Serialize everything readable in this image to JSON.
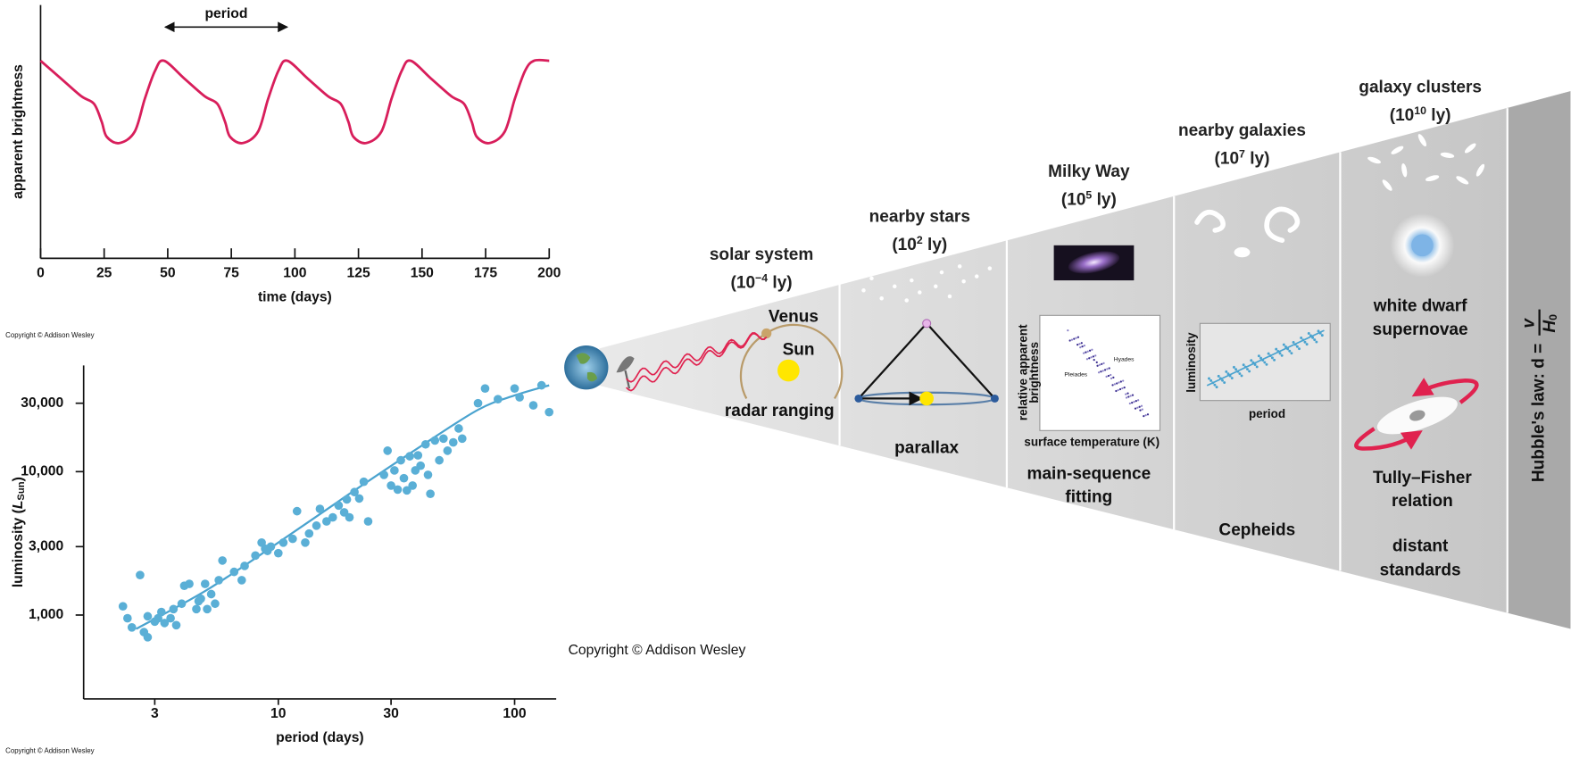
{
  "chart_data": [
    {
      "type": "line",
      "xlabel": "time (days)",
      "ylabel": "apparent brightness",
      "x": [
        0,
        8,
        16,
        21,
        24,
        26,
        31,
        37,
        41,
        45,
        48.5,
        56.5,
        64.5,
        69.5,
        72.5,
        74.5,
        79.5,
        85.5,
        89.5,
        93.5,
        97,
        105,
        113,
        118,
        121,
        123,
        128,
        134,
        138,
        142,
        145.5,
        153.5,
        161.5,
        166.5,
        169.5,
        171.5,
        176.5,
        182.5,
        186.5,
        190.5,
        194,
        200
      ],
      "values": [
        0.78,
        0.71,
        0.64,
        0.61,
        0.54,
        0.48,
        0.455,
        0.5,
        0.63,
        0.74,
        0.78,
        0.71,
        0.64,
        0.61,
        0.54,
        0.48,
        0.455,
        0.5,
        0.63,
        0.74,
        0.78,
        0.71,
        0.64,
        0.61,
        0.54,
        0.48,
        0.455,
        0.5,
        0.63,
        0.74,
        0.78,
        0.71,
        0.64,
        0.61,
        0.54,
        0.48,
        0.455,
        0.5,
        0.63,
        0.74,
        0.78,
        0.78
      ],
      "color": "#d81e5b",
      "xlim": [
        0,
        200
      ],
      "xticks": [
        0,
        25,
        50,
        75,
        100,
        125,
        150,
        175,
        200
      ],
      "ylim": [
        0,
        1
      ],
      "annotation": {
        "text": "period",
        "x_from": 49,
        "x_to": 97
      },
      "copyright": "Copyright © Addison Wesley"
    },
    {
      "type": "scatter",
      "xlabel": "period (days)",
      "ylabel": [
        "luminosity (",
        "L",
        "Sun",
        ")"
      ],
      "xscale": "log",
      "yscale": "log",
      "x": [
        2.2,
        2.3,
        2.4,
        2.6,
        2.7,
        2.8,
        2.8,
        3.0,
        3.1,
        3.2,
        3.3,
        3.5,
        3.6,
        3.7,
        3.9,
        4.0,
        4.2,
        4.5,
        4.6,
        4.7,
        4.9,
        5.0,
        5.2,
        5.4,
        5.6,
        5.8,
        6.5,
        7.0,
        7.2,
        8.0,
        8.5,
        8.8,
        9.0,
        9.3,
        10,
        10.5,
        11.5,
        12,
        13,
        13.5,
        14.5,
        15,
        16,
        17,
        18,
        19,
        19.5,
        20,
        21,
        22,
        23,
        24,
        28,
        29,
        30,
        31,
        32,
        33,
        34,
        35,
        36,
        37,
        38,
        39,
        40,
        42,
        43,
        44,
        46,
        48,
        50,
        52,
        55,
        58,
        60,
        70,
        75,
        85,
        100,
        105,
        120,
        130,
        140
      ],
      "y": [
        1150,
        950,
        820,
        1900,
        760,
        700,
        980,
        900,
        950,
        1050,
        880,
        950,
        1100,
        850,
        1200,
        1600,
        1650,
        1100,
        1250,
        1300,
        1650,
        1100,
        1400,
        1200,
        1750,
        2400,
        2000,
        1750,
        2200,
        2600,
        3200,
        2900,
        2800,
        3000,
        2700,
        3200,
        3400,
        5300,
        3200,
        3700,
        4200,
        5500,
        4500,
        4800,
        5800,
        5200,
        6400,
        4800,
        7200,
        6500,
        8500,
        4500,
        9500,
        14000,
        8000,
        10200,
        7500,
        12000,
        9000,
        7400,
        12800,
        8000,
        10200,
        13000,
        11000,
        15500,
        9500,
        7000,
        16500,
        12000,
        17000,
        14000,
        16000,
        20000,
        17000,
        30000,
        38000,
        32000,
        38000,
        33000,
        29000,
        40000,
        26000
      ],
      "color": "#5aafd6",
      "fit": {
        "x": [
          2.5,
          5,
          10,
          20,
          40,
          70,
          100,
          140
        ],
        "y": [
          800,
          1500,
          3200,
          7000,
          15000,
          27000,
          34000,
          40000
        ],
        "color": "#4aa3cf"
      },
      "xlim": [
        1.5,
        150
      ],
      "xticks": [
        3,
        10,
        30,
        100
      ],
      "ylim": [
        260,
        55000
      ],
      "yticks": [
        {
          "value": 1000,
          "label": "1,000"
        },
        {
          "value": 3000,
          "label": "3,000"
        },
        {
          "value": 10000,
          "label": "10,000"
        },
        {
          "value": 30000,
          "label": "30,000"
        }
      ],
      "copyright": "Copyright © Addison Wesley"
    }
  ],
  "diagram": {
    "stages": [
      {
        "name": "solar system",
        "scale": [
          "(10",
          "−4",
          " ly)"
        ],
        "labels": [
          "radar ranging"
        ]
      },
      {
        "name": "nearby stars",
        "scale": [
          "(10",
          "2",
          " ly)"
        ],
        "labels": [
          "parallax"
        ]
      },
      {
        "name": "Milky Way",
        "scale": [
          "(10",
          "5",
          " ly)"
        ],
        "labels": [
          "main-sequence",
          "fitting"
        ]
      },
      {
        "name": "nearby galaxies",
        "scale": [
          "(10",
          "7",
          " ly)"
        ],
        "labels": [
          "Cepheids"
        ]
      },
      {
        "name": "galaxy clusters",
        "scale": [
          "(10",
          "10",
          " ly)"
        ],
        "labels": [
          "white dwarf",
          "supernovae",
          "Tully–Fisher",
          "relation",
          "distant",
          "standards"
        ]
      }
    ],
    "bodies": [
      "Venus",
      "Sun"
    ],
    "hr_inset": {
      "ylabel": [
        "relative apparent",
        "brightness"
      ],
      "xlabel": "surface temperature (K)",
      "clusters": [
        "Pleiades",
        "Hyades"
      ]
    },
    "cepheid_inset": {
      "ylabel": "luminosity",
      "xlabel": "period"
    },
    "hubble": {
      "label": "Hubble's law: d =",
      "numerator": "v",
      "denominator": "H",
      "subscript": "0"
    },
    "copyright": "Copyright © Addison Wesley"
  }
}
